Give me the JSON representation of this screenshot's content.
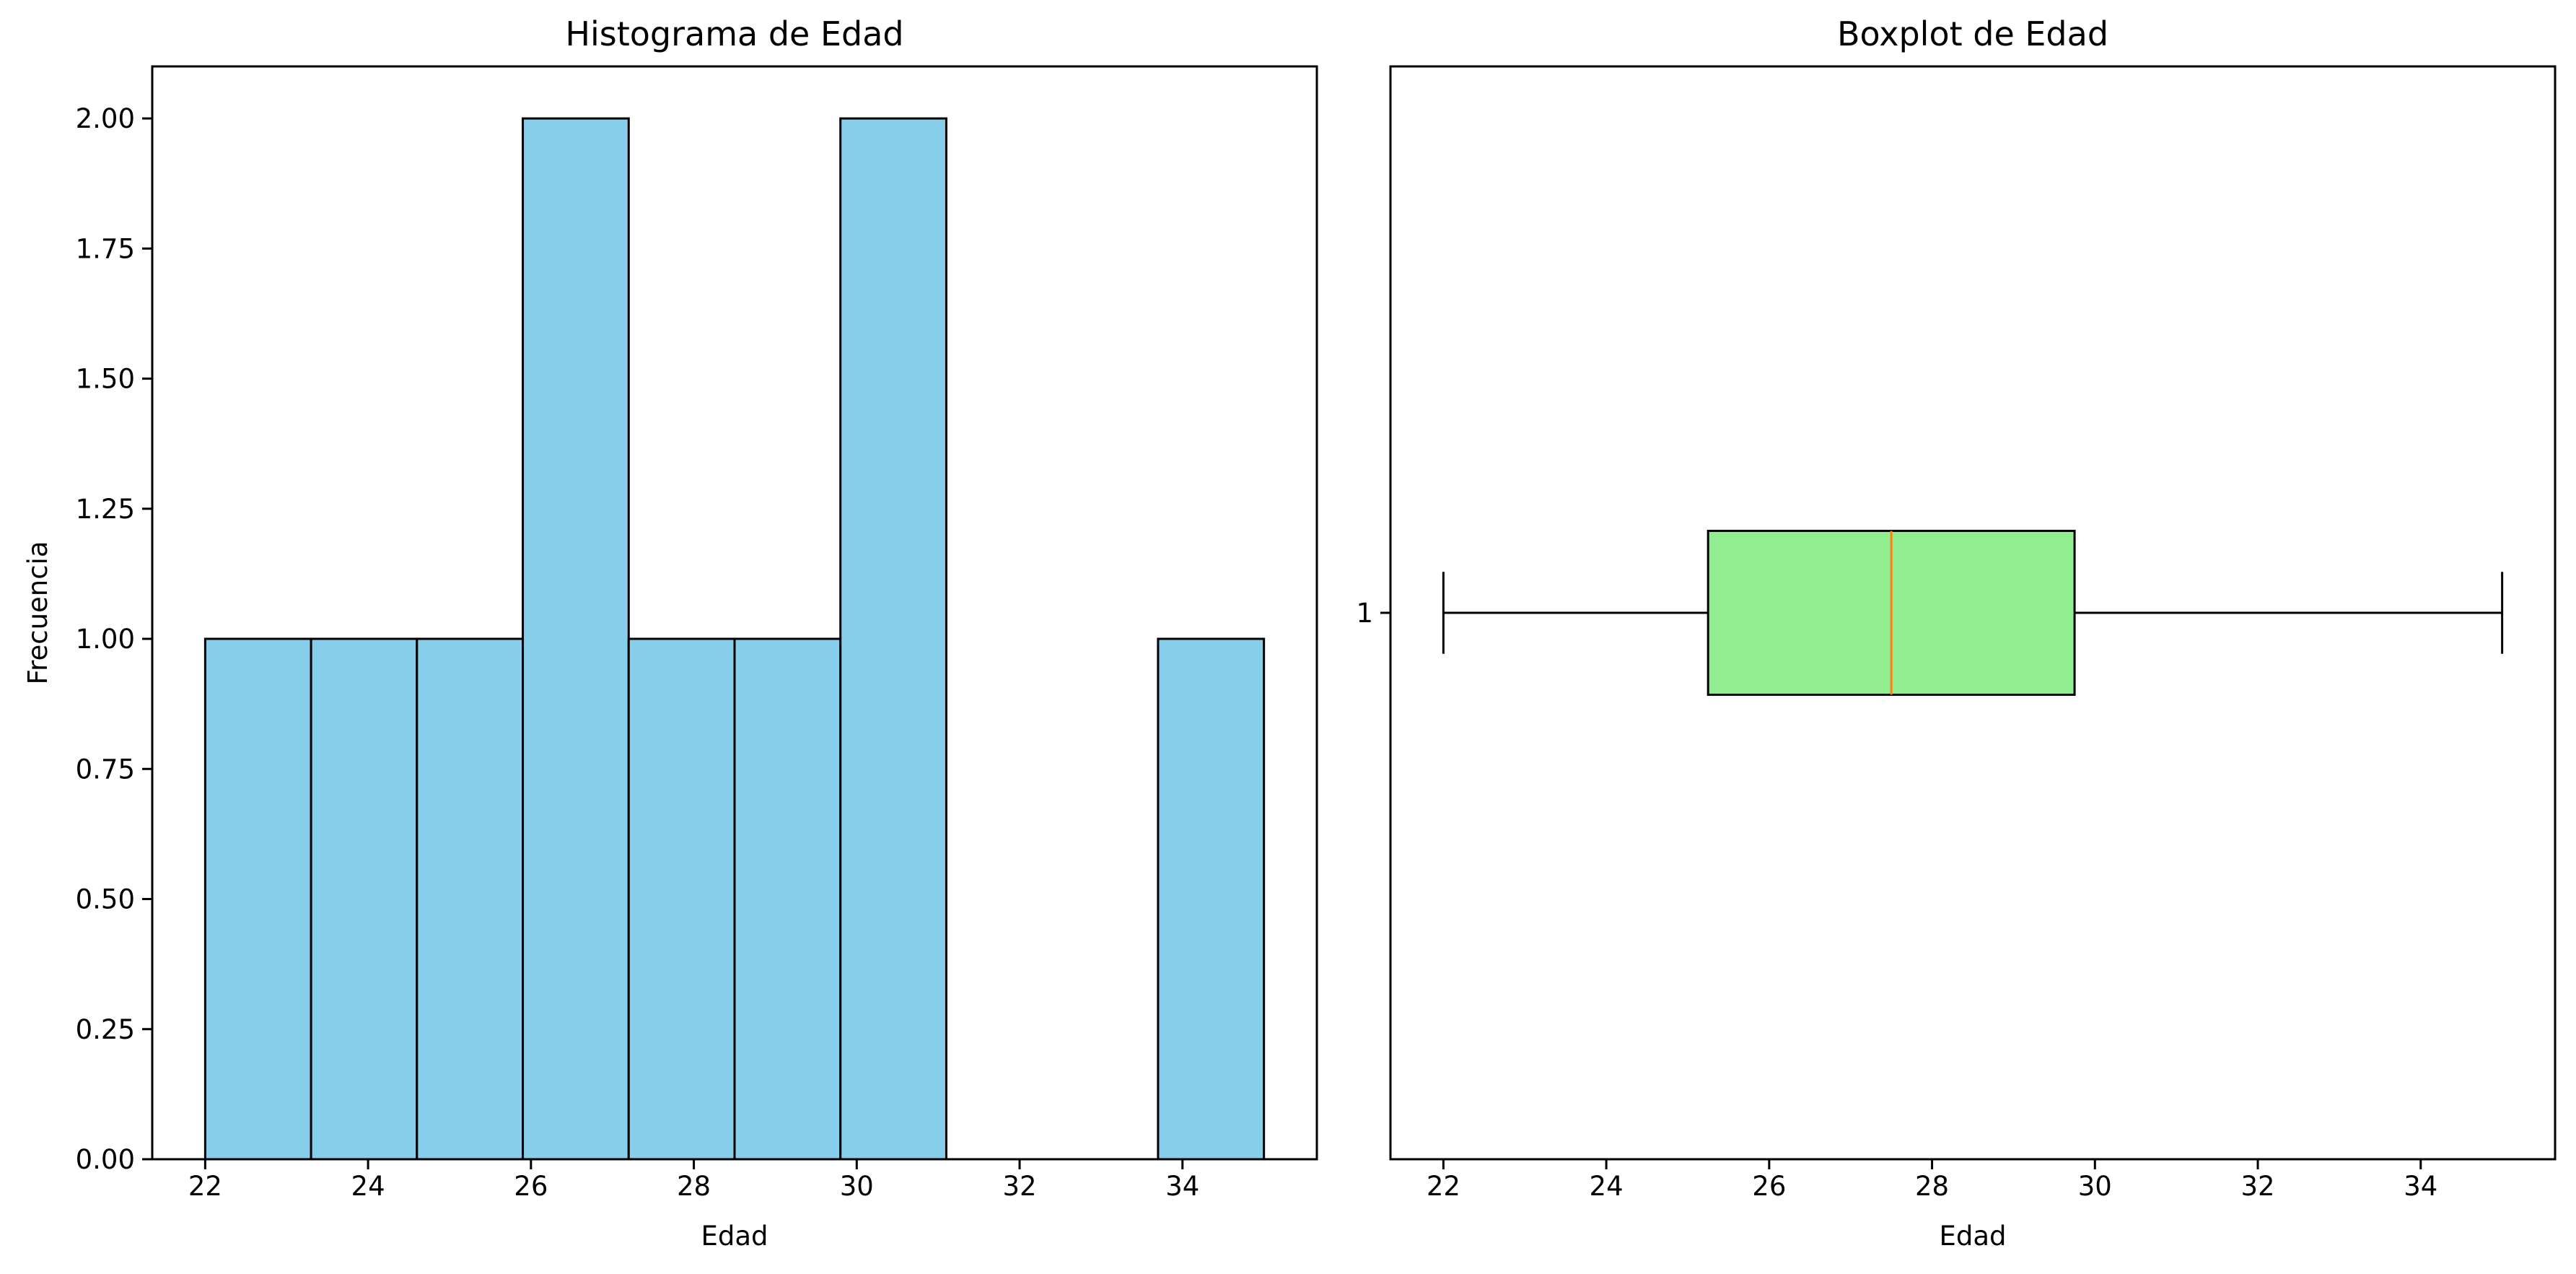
{
  "chart_data": [
    {
      "type": "histogram",
      "title": "Histograma de Edad",
      "xlabel": "Edad",
      "ylabel": "Frecuencia",
      "bin_edges": [
        22.0,
        23.3,
        24.6,
        25.9,
        27.2,
        28.5,
        29.8,
        31.1,
        32.4,
        33.7,
        35.0
      ],
      "counts": [
        1,
        1,
        1,
        2,
        1,
        1,
        2,
        0,
        0,
        1
      ],
      "xlim": [
        21.35,
        35.65
      ],
      "ylim": [
        0,
        2.1
      ],
      "xticks": [
        22,
        24,
        26,
        28,
        30,
        32,
        34
      ],
      "yticks": [
        0.0,
        0.25,
        0.5,
        0.75,
        1.0,
        1.25,
        1.5,
        1.75,
        2.0
      ],
      "ytick_labels": [
        "0.00",
        "0.25",
        "0.50",
        "0.75",
        "1.00",
        "1.25",
        "1.50",
        "1.75",
        "2.00"
      ],
      "bar_color": "#87ceeb",
      "edge_color": "#000000",
      "grid": false
    },
    {
      "type": "boxplot",
      "orientation": "horizontal",
      "title": "Boxplot de Edad",
      "xlabel": "Edad",
      "position": 1,
      "whisker_low": 22,
      "q1": 25.25,
      "median": 27.5,
      "q3": 29.75,
      "whisker_high": 35,
      "xlim": [
        21.35,
        35.65
      ],
      "ylim": [
        0.5,
        1.5
      ],
      "xticks": [
        22,
        24,
        26,
        28,
        30,
        32,
        34
      ],
      "yticks": [
        1
      ],
      "ytick_labels": [
        "1"
      ],
      "box_color": "#90ee90",
      "median_color": "#ff7f0e",
      "grid": false
    }
  ]
}
